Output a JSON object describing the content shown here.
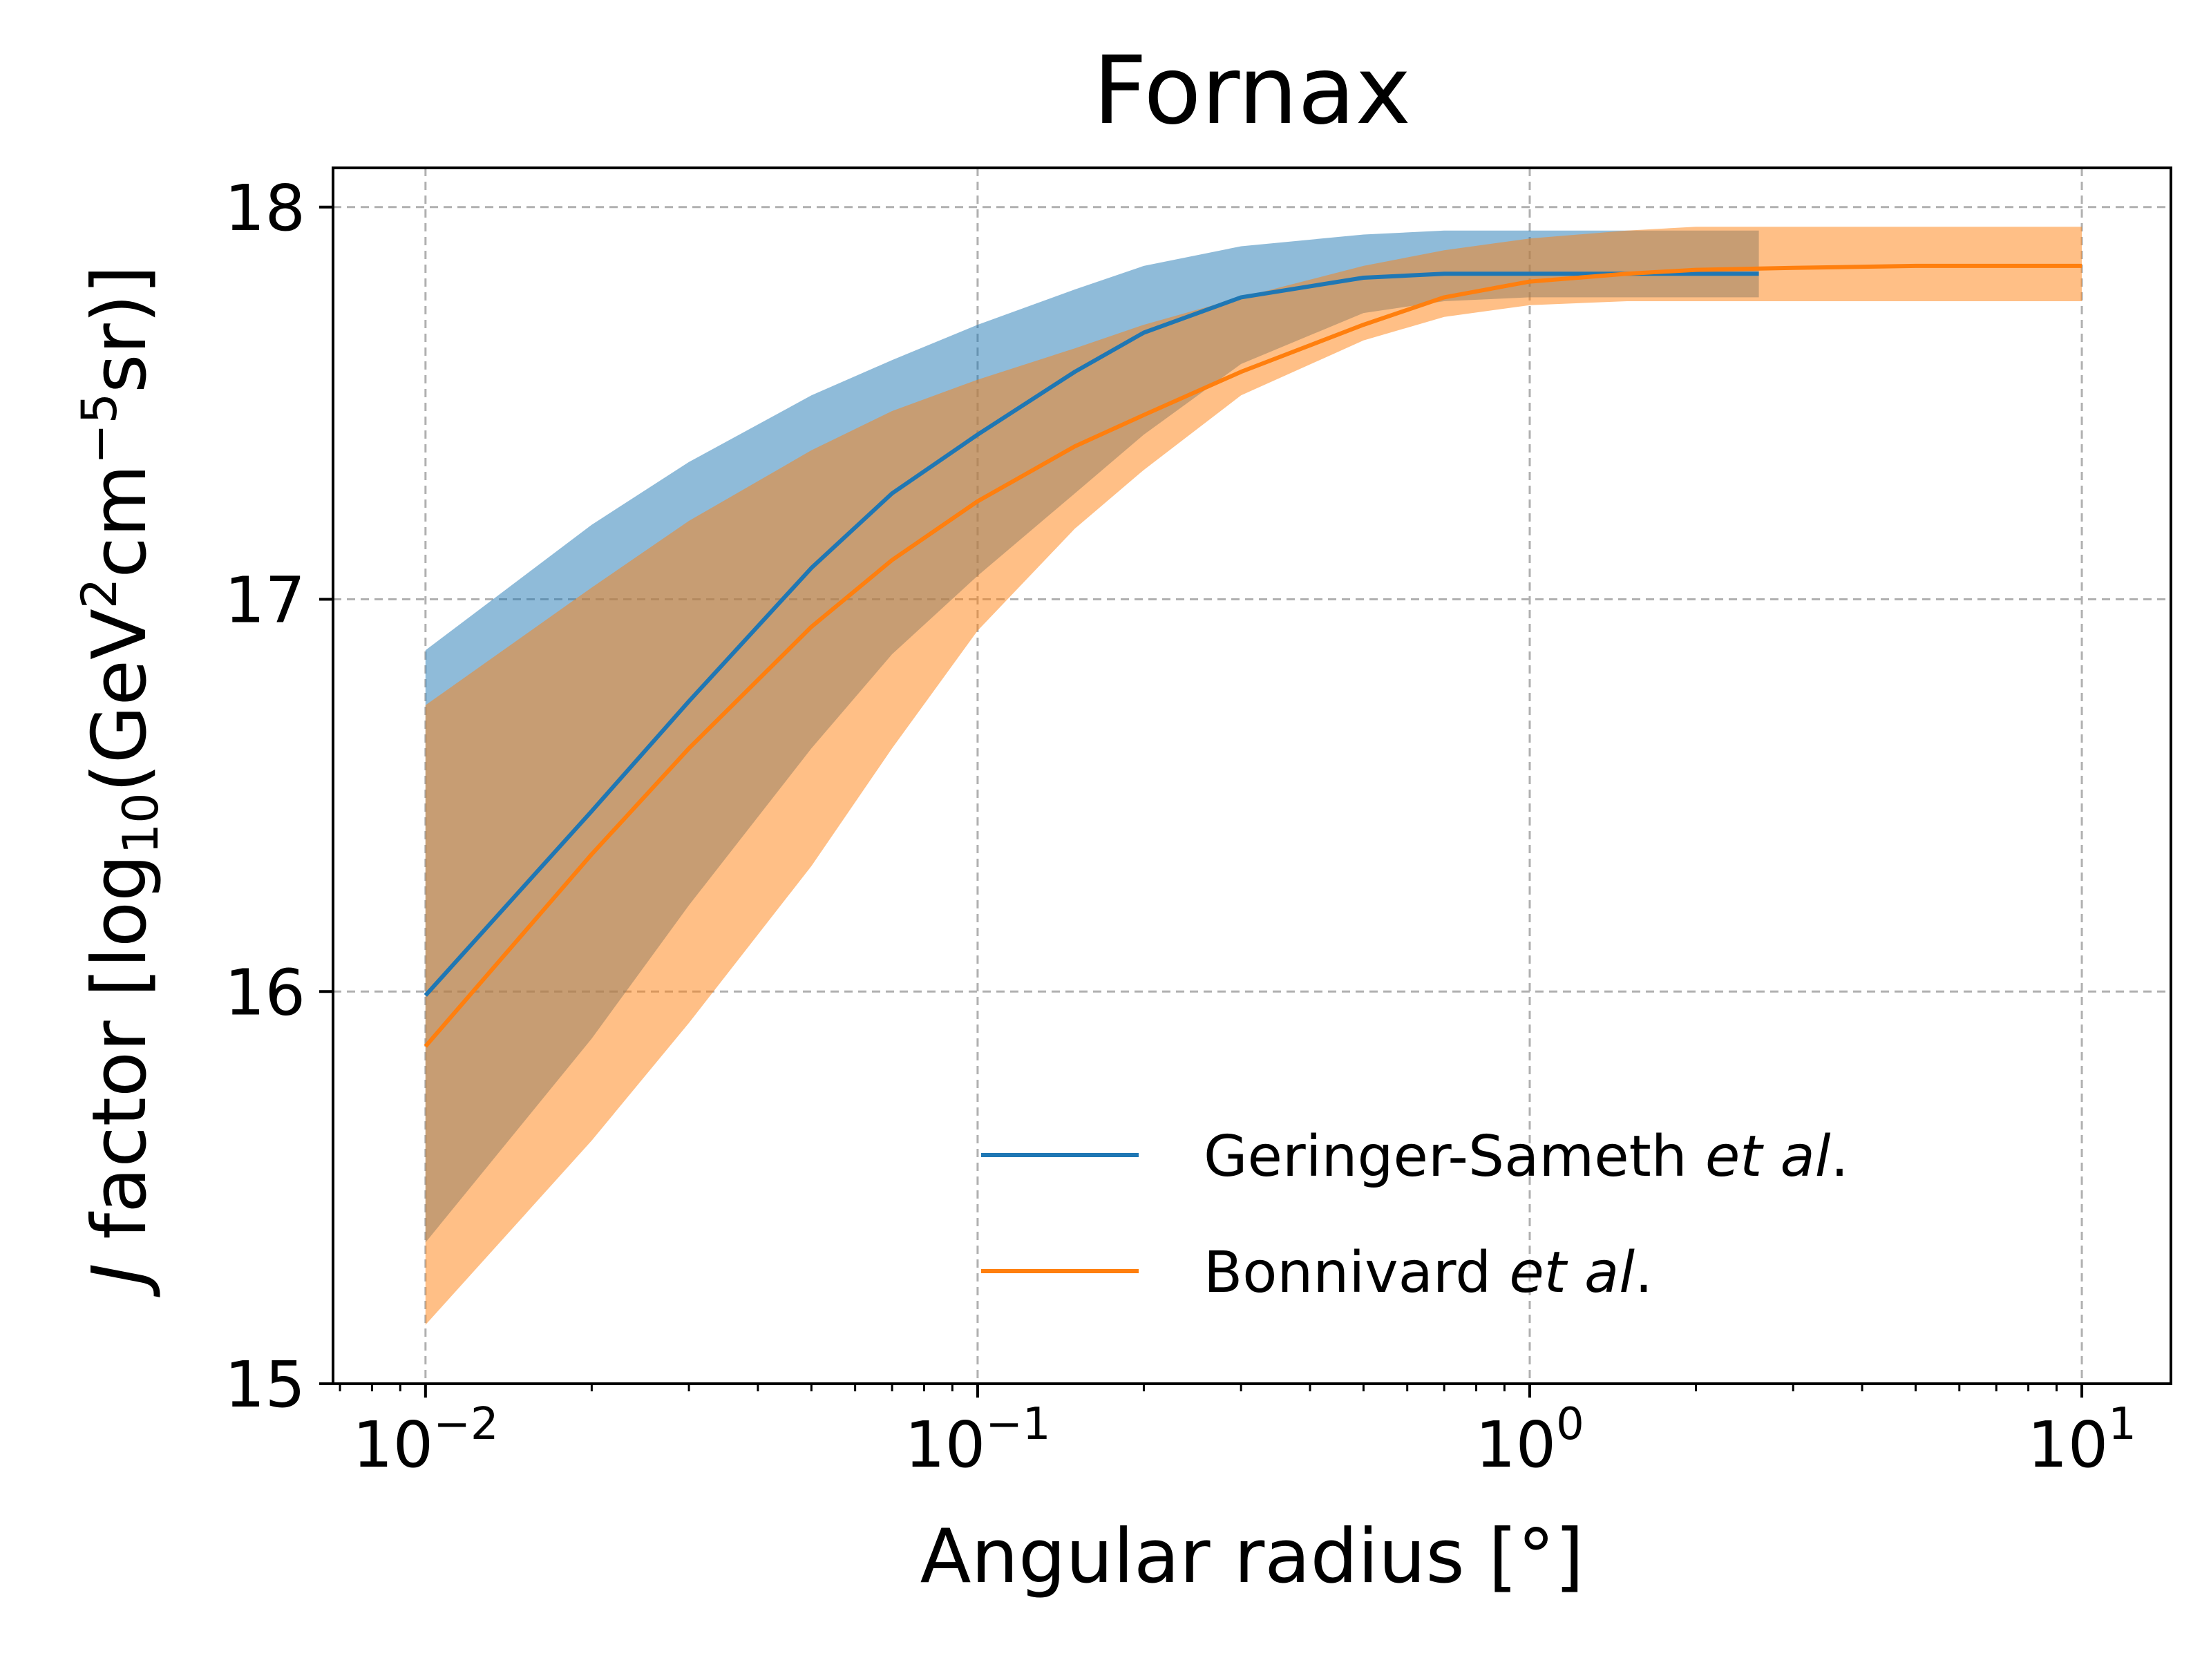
{
  "chart_data": {
    "type": "line",
    "title": "Fornax",
    "xlabel": "Angular radius [°]",
    "ylabel": {
      "prefix": "J",
      "text": " factor [log",
      "sub": "10",
      "mid1": "(GeV",
      "sup1": "2",
      "mid2": "cm",
      "sup2": "−5",
      "suffix": "sr)]"
    },
    "xscale": "log",
    "xlim": [
      0.0068,
      14.5
    ],
    "ylim": [
      15,
      18.1
    ],
    "grid": true,
    "legend_position": "lower-right",
    "x_ticks": [
      {
        "value": 0.01,
        "base": "10",
        "exp": "−2"
      },
      {
        "value": 0.1,
        "base": "10",
        "exp": "−1"
      },
      {
        "value": 1,
        "base": "10",
        "exp": "0"
      },
      {
        "value": 10,
        "base": "10",
        "exp": "1"
      }
    ],
    "y_ticks": [
      {
        "value": 15,
        "label": "15"
      },
      {
        "value": 16,
        "label": "16"
      },
      {
        "value": 17,
        "label": "17"
      },
      {
        "value": 18,
        "label": "18"
      }
    ],
    "series": [
      {
        "name": "Geringer-Sameth",
        "name_italic": "et al",
        "name_suffix": ".",
        "color": "#1f77b4",
        "band_color": "#1f77b4",
        "band_opacity": 0.5,
        "x": [
          0.01,
          0.02,
          0.03,
          0.05,
          0.07,
          0.1,
          0.15,
          0.2,
          0.3,
          0.5,
          0.7,
          1.0,
          1.5,
          2.0,
          2.6
        ],
        "y": [
          15.99,
          16.46,
          16.74,
          17.08,
          17.27,
          17.42,
          17.58,
          17.68,
          17.77,
          17.82,
          17.83,
          17.83,
          17.83,
          17.83,
          17.83
        ],
        "lower": [
          15.36,
          15.88,
          16.22,
          16.62,
          16.86,
          17.06,
          17.27,
          17.42,
          17.6,
          17.73,
          17.76,
          17.77,
          17.77,
          17.77,
          17.77
        ],
        "upper": [
          16.87,
          17.19,
          17.35,
          17.52,
          17.61,
          17.7,
          17.79,
          17.85,
          17.9,
          17.93,
          17.94,
          17.94,
          17.94,
          17.94,
          17.94
        ]
      },
      {
        "name": "Bonnivard",
        "name_italic": "et al",
        "name_suffix": ".",
        "color": "#ff7f0e",
        "band_color": "#ff7f0e",
        "band_opacity": 0.5,
        "x": [
          0.01,
          0.02,
          0.03,
          0.05,
          0.07,
          0.1,
          0.15,
          0.2,
          0.3,
          0.5,
          0.7,
          1.0,
          1.5,
          2.0,
          3.0,
          5.0,
          10.0
        ],
        "y": [
          15.86,
          16.35,
          16.62,
          16.93,
          17.1,
          17.25,
          17.39,
          17.47,
          17.58,
          17.7,
          17.77,
          17.81,
          17.83,
          17.84,
          17.845,
          17.85,
          17.85
        ],
        "lower": [
          15.15,
          15.62,
          15.92,
          16.32,
          16.62,
          16.92,
          17.18,
          17.33,
          17.52,
          17.66,
          17.72,
          17.75,
          17.76,
          17.76,
          17.76,
          17.76,
          17.76
        ],
        "upper": [
          16.73,
          17.03,
          17.2,
          17.38,
          17.48,
          17.56,
          17.64,
          17.7,
          17.77,
          17.85,
          17.89,
          17.92,
          17.94,
          17.95,
          17.95,
          17.95,
          17.95
        ]
      }
    ]
  }
}
